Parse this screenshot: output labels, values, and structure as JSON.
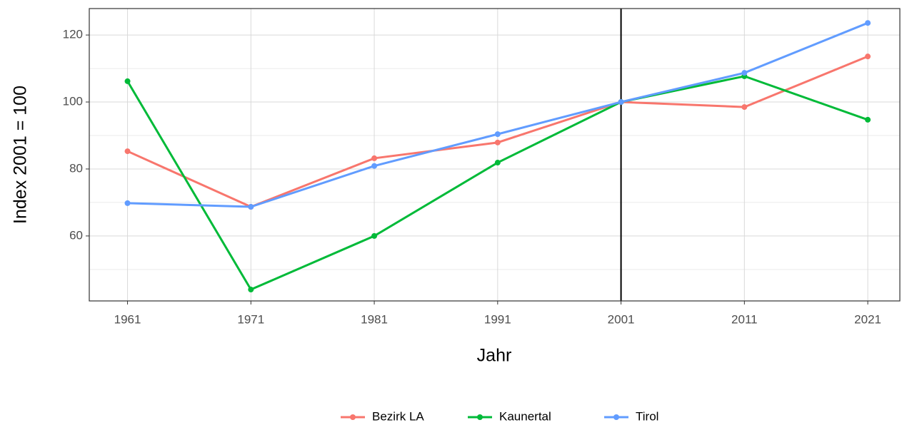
{
  "chart_data": {
    "type": "line",
    "x_label": "Jahr",
    "y_label": "Index 2001 = 100",
    "x": [
      1961,
      1971,
      1981,
      1991,
      2001,
      2011,
      2021
    ],
    "series": [
      {
        "name": "Bezirk LA",
        "color": "#F8766D",
        "values": [
          85.3,
          68.7,
          83.2,
          87.9,
          100,
          98.5,
          113.6
        ]
      },
      {
        "name": "Kaunertal",
        "color": "#00BA38",
        "values": [
          106.2,
          44.0,
          60,
          81.9,
          100,
          107.7,
          94.7
        ]
      },
      {
        "name": "Tirol",
        "color": "#619CFF",
        "values": [
          69.8,
          68.7,
          80.9,
          90.4,
          100,
          108.7,
          123.6
        ]
      }
    ],
    "xlim": [
      1957.9,
      2023.6
    ],
    "xticks": [
      1961,
      1971,
      1981,
      1991,
      2001,
      2011,
      2021
    ],
    "ylim": [
      40.6,
      127.9
    ],
    "yticks": [
      60,
      80,
      100,
      120
    ],
    "yminor": [
      50,
      70,
      90,
      110
    ],
    "vline": 2001,
    "grid": true,
    "legend": "bottom"
  }
}
